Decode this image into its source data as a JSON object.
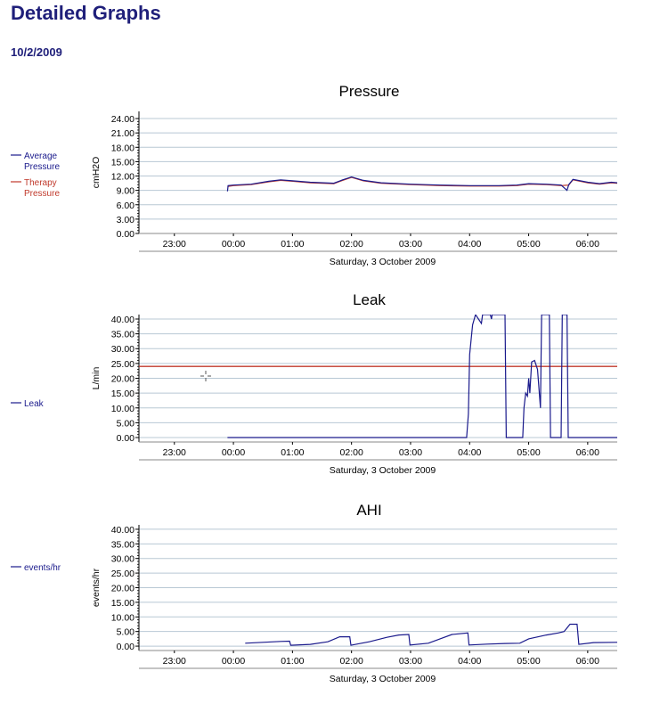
{
  "page": {
    "title": "Detailed Graphs",
    "date": "10/2/2009"
  },
  "colors": {
    "heading": "#1f1f7a",
    "series_blue": "#1a1a8c",
    "series_red": "#c0392b",
    "grid": "#b8c8d4"
  },
  "chart_data": [
    {
      "type": "line",
      "title": "Pressure",
      "ylabel": "cmH2O",
      "xlabel": "Saturday, 3 October 2009",
      "ylim": [
        0,
        25.5
      ],
      "yticks": [
        "0.00",
        "3.00",
        "6.00",
        "9.00",
        "12.00",
        "15.00",
        "18.00",
        "21.00",
        "24.00"
      ],
      "xlim": [
        -1.6,
        6.5
      ],
      "xticks": [
        "23:00",
        "00:00",
        "01:00",
        "02:00",
        "03:00",
        "04:00",
        "05:00",
        "06:00"
      ],
      "grid": true,
      "legend_position": "left",
      "series": [
        {
          "name": "Average Pressure",
          "color": "#1a1a8c",
          "points": [
            [
              -0.1,
              8.8
            ],
            [
              -0.09,
              10.0
            ],
            [
              0.0,
              10.1
            ],
            [
              0.3,
              10.3
            ],
            [
              0.6,
              10.9
            ],
            [
              0.8,
              11.2
            ],
            [
              1.0,
              11.0
            ],
            [
              1.3,
              10.7
            ],
            [
              1.7,
              10.5
            ],
            [
              1.85,
              11.2
            ],
            [
              2.0,
              11.8
            ],
            [
              2.2,
              11.1
            ],
            [
              2.5,
              10.6
            ],
            [
              3.0,
              10.3
            ],
            [
              3.5,
              10.1
            ],
            [
              4.0,
              10.0
            ],
            [
              4.5,
              10.0
            ],
            [
              4.8,
              10.1
            ],
            [
              5.0,
              10.4
            ],
            [
              5.3,
              10.3
            ],
            [
              5.55,
              10.1
            ],
            [
              5.65,
              9.0
            ],
            [
              5.68,
              10.2
            ],
            [
              5.75,
              11.3
            ],
            [
              6.0,
              10.7
            ],
            [
              6.2,
              10.4
            ],
            [
              6.4,
              10.7
            ],
            [
              6.5,
              10.6
            ]
          ]
        },
        {
          "name": "Therapy Pressure",
          "color": "#c0392b",
          "points": [
            [
              -0.1,
              9.8
            ],
            [
              0.0,
              10.0
            ],
            [
              0.3,
              10.2
            ],
            [
              0.6,
              10.8
            ],
            [
              0.8,
              11.1
            ],
            [
              1.0,
              10.9
            ],
            [
              1.3,
              10.6
            ],
            [
              1.7,
              10.4
            ],
            [
              1.85,
              11.1
            ],
            [
              2.0,
              11.7
            ],
            [
              2.2,
              11.0
            ],
            [
              2.5,
              10.5
            ],
            [
              3.0,
              10.2
            ],
            [
              3.5,
              10.0
            ],
            [
              4.0,
              9.9
            ],
            [
              4.5,
              9.9
            ],
            [
              4.8,
              10.0
            ],
            [
              5.0,
              10.3
            ],
            [
              5.3,
              10.2
            ],
            [
              5.55,
              10.0
            ],
            [
              5.68,
              10.1
            ],
            [
              5.75,
              11.2
            ],
            [
              6.0,
              10.6
            ],
            [
              6.2,
              10.3
            ],
            [
              6.4,
              10.6
            ],
            [
              6.5,
              10.5
            ]
          ]
        }
      ]
    },
    {
      "type": "line",
      "title": "Leak",
      "ylabel": "L/min",
      "xlabel": "Saturday, 3 October 2009",
      "ylim": [
        -1.5,
        41.5
      ],
      "yticks": [
        "0.00",
        "5.00",
        "10.00",
        "15.00",
        "20.00",
        "25.00",
        "30.00",
        "35.00",
        "40.00"
      ],
      "xlim": [
        -1.6,
        6.5
      ],
      "xticks": [
        "23:00",
        "00:00",
        "01:00",
        "02:00",
        "03:00",
        "04:00",
        "05:00",
        "06:00"
      ],
      "grid": true,
      "legend_position": "left",
      "reference_line": {
        "value": 24,
        "color": "#c0392b"
      },
      "series": [
        {
          "name": "Leak",
          "color": "#1a1a8c",
          "points": [
            [
              -0.1,
              0.0
            ],
            [
              3.95,
              0.0
            ],
            [
              3.98,
              8.0
            ],
            [
              4.0,
              28.0
            ],
            [
              4.05,
              38.0
            ],
            [
              4.1,
              41.5
            ],
            [
              4.2,
              38.5
            ],
            [
              4.22,
              41.5
            ],
            [
              4.35,
              41.5
            ],
            [
              4.37,
              40.0
            ],
            [
              4.38,
              41.5
            ],
            [
              4.6,
              41.5
            ],
            [
              4.62,
              0.0
            ],
            [
              4.9,
              0.0
            ],
            [
              4.92,
              10.0
            ],
            [
              4.95,
              15.0
            ],
            [
              4.98,
              14.0
            ],
            [
              5.0,
              20.0
            ],
            [
              5.02,
              15.0
            ],
            [
              5.05,
              25.5
            ],
            [
              5.1,
              26.0
            ],
            [
              5.15,
              23.0
            ],
            [
              5.2,
              10.0
            ],
            [
              5.22,
              41.5
            ],
            [
              5.35,
              41.5
            ],
            [
              5.37,
              0.0
            ],
            [
              5.55,
              0.0
            ],
            [
              5.57,
              41.5
            ],
            [
              5.65,
              41.5
            ],
            [
              5.67,
              0.0
            ],
            [
              6.5,
              0.0
            ]
          ]
        }
      ]
    },
    {
      "type": "line",
      "title": "AHI",
      "ylabel": "events/hr",
      "xlabel": "Saturday, 3 October 2009",
      "ylim": [
        -1.5,
        41.5
      ],
      "yticks": [
        "0.00",
        "5.00",
        "10.00",
        "15.00",
        "20.00",
        "25.00",
        "30.00",
        "35.00",
        "40.00"
      ],
      "xlim": [
        -1.6,
        6.5
      ],
      "xticks": [
        "23:00",
        "00:00",
        "01:00",
        "02:00",
        "03:00",
        "04:00",
        "05:00",
        "06:00"
      ],
      "grid": true,
      "legend_position": "left",
      "series": [
        {
          "name": "events/hr",
          "color": "#1a1a8c",
          "points": [
            [
              0.2,
              1.0
            ],
            [
              0.5,
              1.3
            ],
            [
              0.8,
              1.6
            ],
            [
              0.95,
              1.7
            ],
            [
              0.97,
              0.3
            ],
            [
              1.3,
              0.6
            ],
            [
              1.6,
              1.5
            ],
            [
              1.8,
              3.2
            ],
            [
              1.97,
              3.2
            ],
            [
              1.99,
              0.3
            ],
            [
              2.3,
              1.5
            ],
            [
              2.6,
              3.0
            ],
            [
              2.8,
              3.8
            ],
            [
              2.97,
              4.0
            ],
            [
              2.99,
              0.4
            ],
            [
              3.3,
              1.0
            ],
            [
              3.5,
              2.5
            ],
            [
              3.7,
              4.0
            ],
            [
              3.97,
              4.5
            ],
            [
              3.99,
              0.4
            ],
            [
              4.3,
              0.7
            ],
            [
              4.6,
              0.9
            ],
            [
              4.85,
              1.0
            ],
            [
              5.0,
              2.5
            ],
            [
              5.3,
              3.8
            ],
            [
              5.5,
              4.5
            ],
            [
              5.6,
              5.0
            ],
            [
              5.7,
              7.5
            ],
            [
              5.82,
              7.5
            ],
            [
              5.85,
              0.6
            ],
            [
              6.1,
              1.2
            ],
            [
              6.5,
              1.3
            ]
          ]
        }
      ]
    }
  ]
}
